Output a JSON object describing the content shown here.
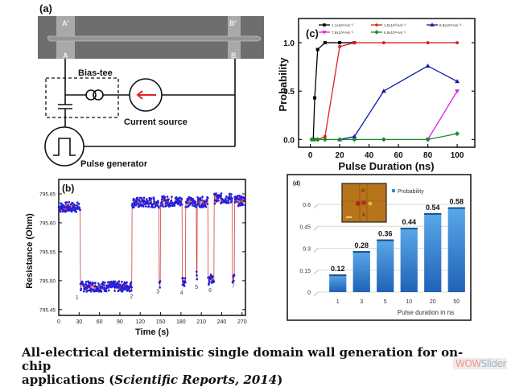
{
  "panel_a": {
    "label": "(a)",
    "sem_labels": {
      "a_prime": "A′",
      "a": "A",
      "b_prime": "B′",
      "b": "B"
    },
    "bias_tee_label": "Bias-tee",
    "current_source_label": "Current source",
    "pulse_generator_label": "Pulse generator",
    "arrow_color": "#e02020"
  },
  "caption": {
    "line1": "All-electrical deterministic single domain wall generation for on-chip",
    "line2_prefix": "applications (",
    "line2_italic": "Scientific Reports, 2014",
    "line2_suffix": ")"
  },
  "watermark": {
    "part1": "WOW",
    "part2": "Slider"
  },
  "chart_data": [
    {
      "id": "c",
      "panel_label": "(c)",
      "type": "line",
      "xlabel": "Pulse Duration (ns)",
      "ylabel": "Probability",
      "xlim": [
        -8,
        112
      ],
      "ylim": [
        -0.08,
        1.25
      ],
      "xticks": [
        0,
        20,
        40,
        60,
        80,
        100
      ],
      "yticks": [
        0.0,
        0.5,
        1.0
      ],
      "ytick_labels": [
        "0.0",
        "0.5",
        "1.0"
      ],
      "legend_position": "top",
      "series": [
        {
          "name": "1.1x10¹²Am⁻²",
          "color": "#000000",
          "marker": "square",
          "x": [
            2,
            3,
            5,
            10,
            20,
            30
          ],
          "y": [
            0.0,
            0.43,
            0.93,
            1.0,
            1.0,
            1.0
          ]
        },
        {
          "name": "1.0x10¹²Am⁻²",
          "color": "#e02020",
          "marker": "circle",
          "x": [
            2,
            3,
            5,
            10,
            20,
            30,
            50,
            80,
            100
          ],
          "y": [
            0.0,
            0.0,
            0.0,
            0.03,
            0.96,
            1.0,
            1.0,
            1.0,
            1.0
          ]
        },
        {
          "name": "8.9x10¹¹Am⁻²",
          "color": "#0a1aa8",
          "marker": "triangle-up",
          "x": [
            20,
            30,
            50,
            80,
            100
          ],
          "y": [
            0.0,
            0.03,
            0.5,
            0.76,
            0.6
          ]
        },
        {
          "name": "7.8x10¹¹Am⁻²",
          "color": "#e020e0",
          "marker": "triangle-down",
          "x": [
            80,
            100
          ],
          "y": [
            0.0,
            0.5
          ]
        },
        {
          "name": "6.9x10¹¹Am⁻²",
          "color": "#1a8a2a",
          "marker": "diamond",
          "x": [
            1,
            3,
            5,
            10,
            20,
            30,
            50,
            80,
            100
          ],
          "y": [
            0.0,
            0.0,
            0.0,
            0.0,
            0.0,
            0.0,
            0.0,
            0.0,
            0.06
          ]
        }
      ]
    },
    {
      "id": "b",
      "panel_label": "(b)",
      "type": "line",
      "xlabel": "Time (s)",
      "ylabel": "Resistance (Ohm)",
      "xlim": [
        0,
        275
      ],
      "ylim": [
        795.44,
        795.675
      ],
      "xticks": [
        0,
        30,
        60,
        90,
        120,
        150,
        180,
        210,
        240,
        270
      ],
      "yticks": [
        795.45,
        795.5,
        795.55,
        795.6,
        795.65
      ],
      "ytick_labels": [
        "795.45",
        "795.50",
        "795.55",
        "795.60",
        "795.65"
      ],
      "line_color": "#d04040",
      "marker_color": "#2020e0",
      "high_level": 795.635,
      "low_level": 795.49,
      "segments": [
        {
          "start": 0,
          "end": 32,
          "state": "high",
          "level": 795.627
        },
        {
          "start": 32,
          "end": 108,
          "state": "low",
          "level": 795.49
        },
        {
          "start": 108,
          "end": 148,
          "state": "high",
          "level": 795.635
        },
        {
          "start": 148,
          "end": 150,
          "state": "low",
          "level": 795.497
        },
        {
          "start": 150,
          "end": 182,
          "state": "high",
          "level": 795.637
        },
        {
          "start": 182,
          "end": 187,
          "state": "low",
          "level": 795.5
        },
        {
          "start": 187,
          "end": 203,
          "state": "high",
          "level": 795.636
        },
        {
          "start": 203,
          "end": 204,
          "state": "low",
          "level": 795.507
        },
        {
          "start": 204,
          "end": 220,
          "state": "high",
          "level": 795.636
        },
        {
          "start": 220,
          "end": 229,
          "state": "low",
          "level": 795.502
        },
        {
          "start": 229,
          "end": 256,
          "state": "high",
          "level": 795.642
        },
        {
          "start": 256,
          "end": 259,
          "state": "low",
          "level": 795.505
        },
        {
          "start": 259,
          "end": 275,
          "state": "high",
          "level": 795.638
        }
      ],
      "annotations": [
        {
          "text": "1",
          "x": 27,
          "y": 795.468
        },
        {
          "text": "2",
          "x": 107,
          "y": 795.47
        },
        {
          "text": "3",
          "x": 146,
          "y": 795.478
        },
        {
          "text": "4",
          "x": 181,
          "y": 795.476
        },
        {
          "text": "5",
          "x": 203,
          "y": 795.486
        },
        {
          "text": "6",
          "x": 223,
          "y": 795.48
        },
        {
          "text": "7",
          "x": 257,
          "y": 795.488
        }
      ]
    },
    {
      "id": "d",
      "panel_label": "(d)",
      "type": "bar",
      "categories": [
        "1",
        "3",
        "5",
        "10",
        "20",
        "50"
      ],
      "values": [
        0.12,
        0.28,
        0.36,
        0.44,
        0.54,
        0.58
      ],
      "value_labels": [
        "0.12",
        "0.28",
        "0.36",
        "0.44",
        "0.54",
        "0.58"
      ],
      "xlabel": "Pulse duration in ns",
      "ylabel": "",
      "ylim": [
        0,
        0.6
      ],
      "yticks": [
        0,
        0.15,
        0.3,
        0.45,
        0.6
      ],
      "ytick_labels": [
        "0",
        "0.15",
        "0.3",
        "0.45",
        "0.6"
      ],
      "legend": [
        "Probability"
      ],
      "legend_position": "top-right",
      "bar_color": "#3b8bd6",
      "grid": true,
      "inset": {
        "labels": {
          "a_prime": "A′",
          "a": "A"
        },
        "background": "#b8741a"
      }
    }
  ]
}
